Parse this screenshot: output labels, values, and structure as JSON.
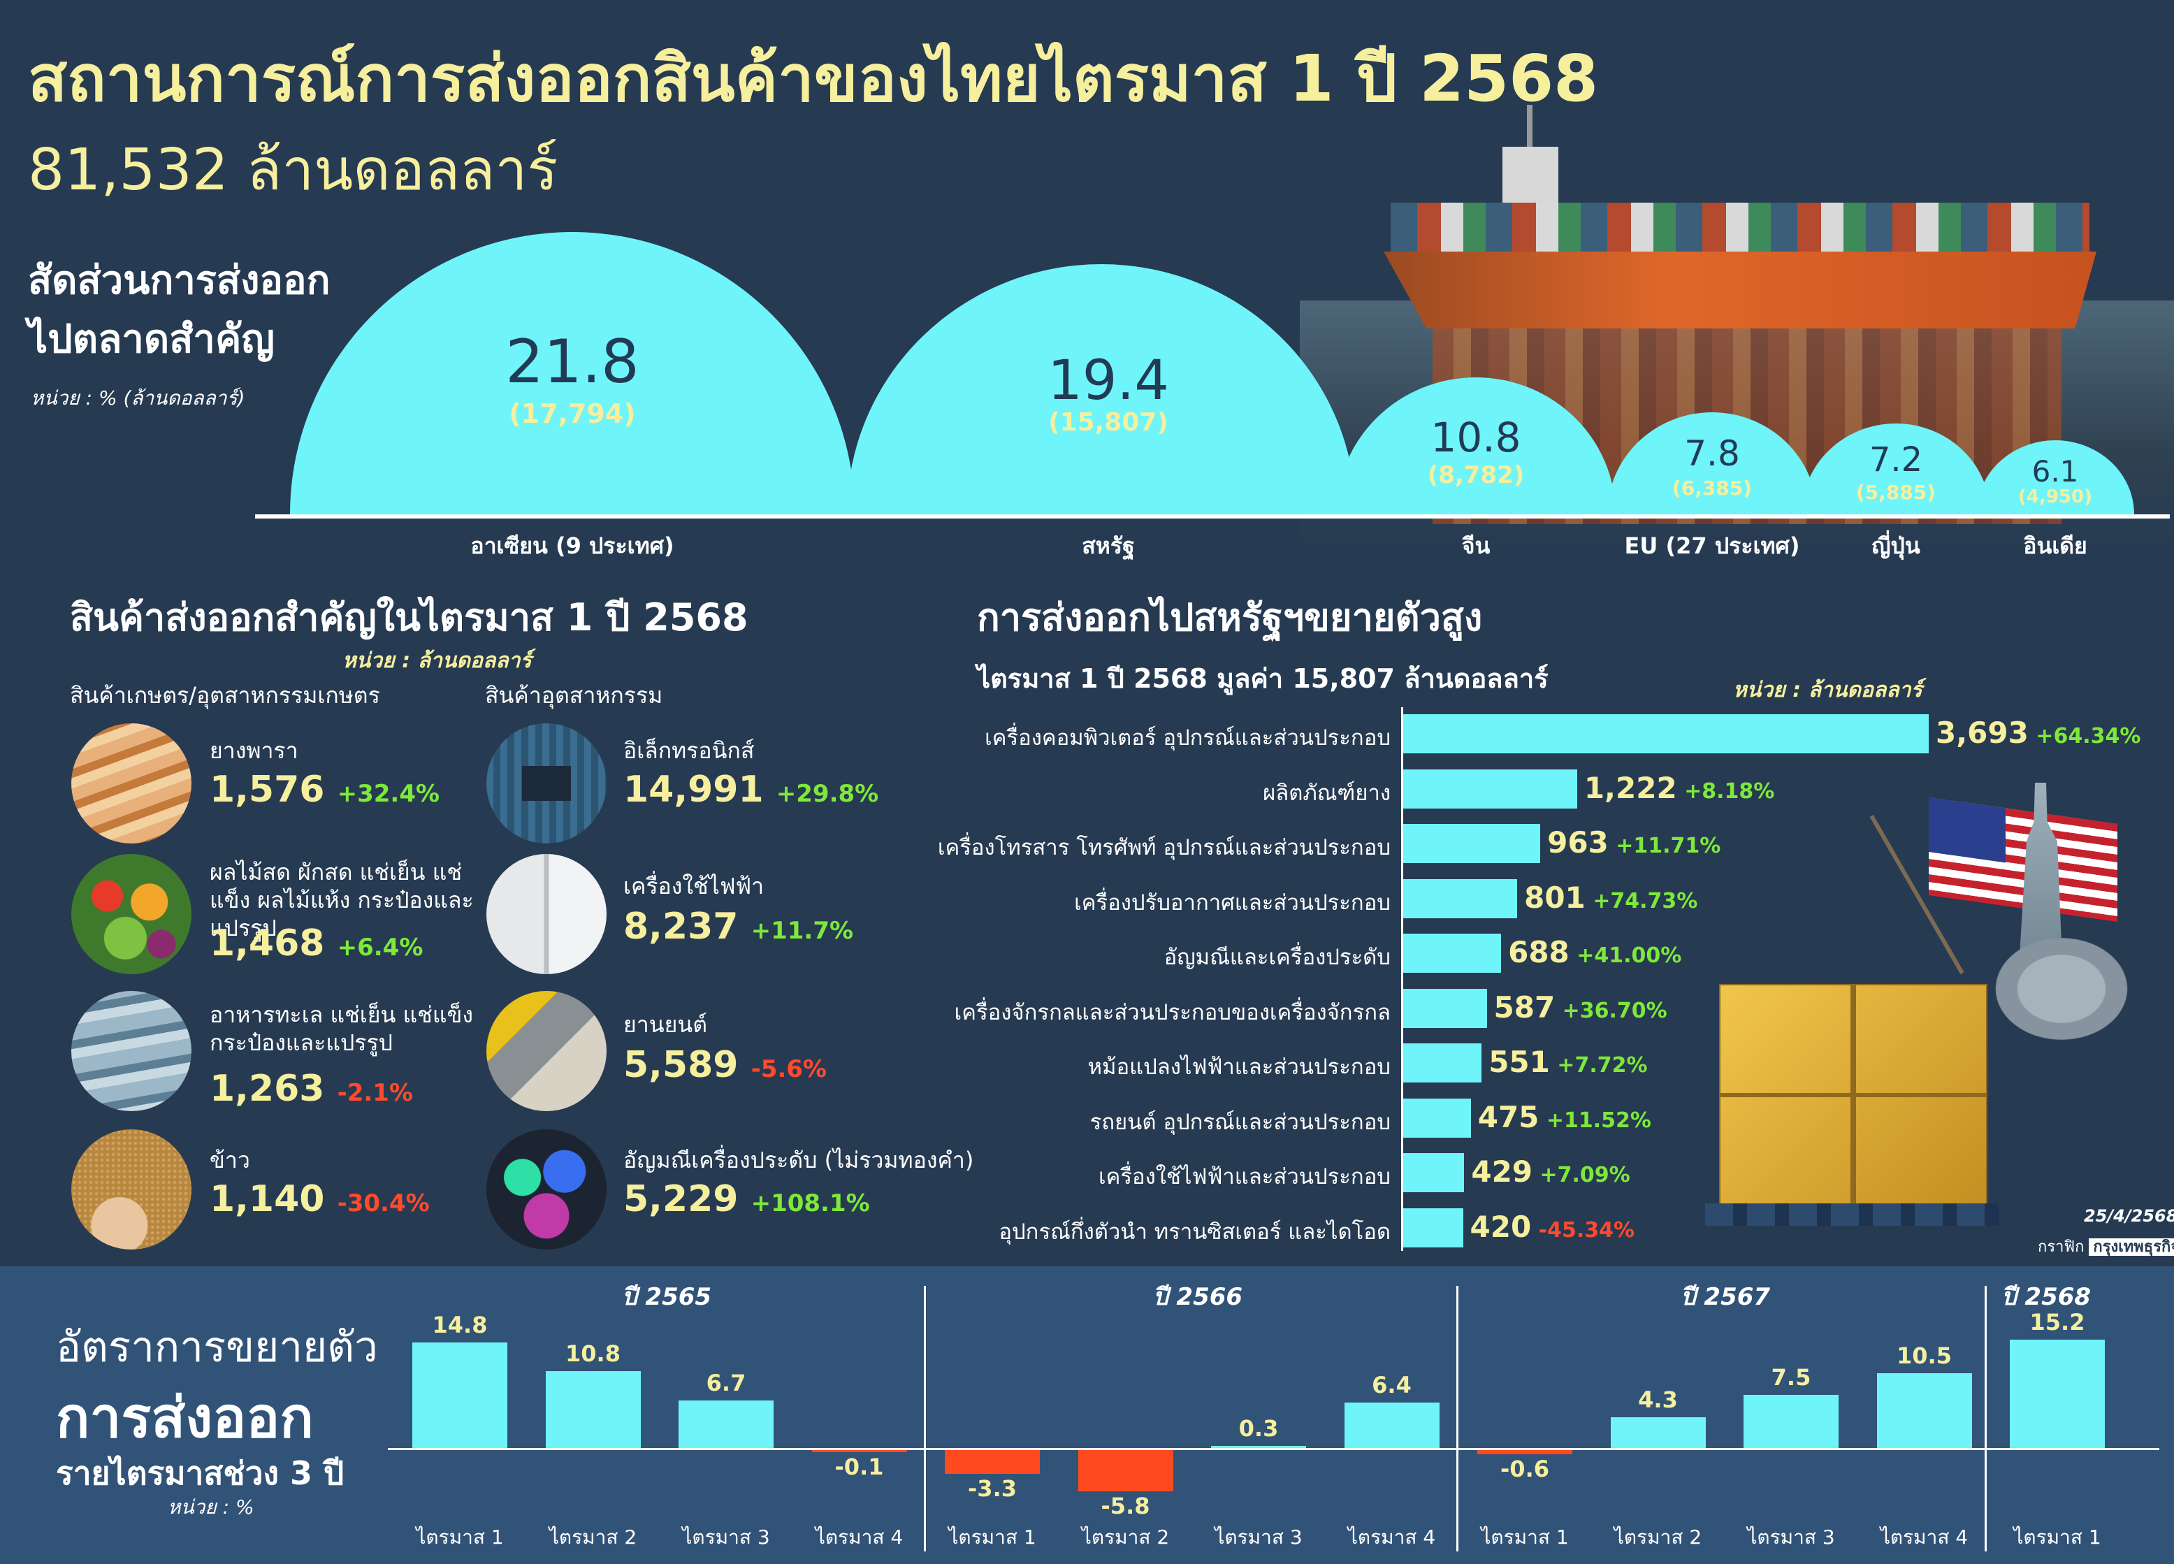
{
  "title": "สถานการณ์การส่งออกสินค้าของไทยไตรมาส 1 ปี 2568",
  "subtitle": "81,532 ล้านดอลลาร์",
  "market_share": {
    "heading_line1": "สัดส่วนการส่งออก",
    "heading_line2": "ไปตลาดสำคัญ",
    "unit": "หน่วย : % (ล้านดอลลาร์)",
    "items": [
      {
        "label": "อาเซียน (9 ประเทศ)",
        "pct": "21.8",
        "value": "(17,794)"
      },
      {
        "label": "สหรัฐ",
        "pct": "19.4",
        "value": "(15,807)"
      },
      {
        "label": "จีน",
        "pct": "10.8",
        "value": "(8,782)"
      },
      {
        "label": "EU (27 ประเทศ)",
        "pct": "7.8",
        "value": "(6,385)"
      },
      {
        "label": "ญี่ปุ่น",
        "pct": "7.2",
        "value": "(5,885)"
      },
      {
        "label": "อินเดีย",
        "pct": "6.1",
        "value": "(4,950)"
      }
    ]
  },
  "products": {
    "heading": "สินค้าส่งออกสำคัญในไตรมาส 1 ปี 2568",
    "unit": "หน่วย : ล้านดอลลาร์",
    "agri_title": "สินค้าเกษตร/อุตสาหกรรมเกษตร",
    "ind_title": "สินค้าอุตสาหกรรม",
    "agri": [
      {
        "name": "ยางพารา",
        "value": "1,576",
        "change": "+32.4%"
      },
      {
        "name": "ผลไม้สด ผักสด แช่เย็น แช่แข็ง ผลไม้แห้ง กระป๋องและแปรรูป",
        "value": "1,468",
        "change": "+6.4%"
      },
      {
        "name": "อาหารทะเล แช่เย็น แช่แข็ง กระป๋องและแปรรูป",
        "value": "1,263",
        "change": "-2.1%"
      },
      {
        "name": "ข้าว",
        "value": "1,140",
        "change": "-30.4%"
      }
    ],
    "industrial": [
      {
        "name": "อิเล็กทรอนิกส์",
        "value": "14,991",
        "change": "+29.8%"
      },
      {
        "name": "เครื่องใช้ไฟฟ้า",
        "value": "8,237",
        "change": "+11.7%"
      },
      {
        "name": "ยานยนต์",
        "value": "5,589",
        "change": "-5.6%"
      },
      {
        "name": "อัญมณีเครื่องประดับ (ไม่รวมทองคำ)",
        "value": "5,229",
        "change": "+108.1%"
      }
    ]
  },
  "us_exports": {
    "heading": "การส่งออกไปสหรัฐฯขยายตัวสูง",
    "subheading": "ไตรมาส 1 ปี 2568 มูลค่า 15,807 ล้านดอลลาร์",
    "unit": "หน่วย : ล้านดอลลาร์",
    "date": "25/4/2568",
    "credit_prefix": "กราฟิก",
    "credit_name": "กรุงเทพธุรกิจ"
  },
  "growth": {
    "title1": "อัตราการขยายตัว",
    "title2": "การส่งออก",
    "title3": "รายไตรมาสช่วง 3 ปี",
    "unit": "หน่วย : %",
    "years": [
      "ปี 2565",
      "ปี 2566",
      "ปี 2567",
      "ปี 2568"
    ]
  },
  "chart_data": [
    {
      "type": "bar",
      "orientation": "horizontal",
      "title": "การส่งออกไปสหรัฐฯขยายตัวสูง",
      "categories": [
        "เครื่องคอมพิวเตอร์ อุปกรณ์และส่วนประกอบ",
        "ผลิตภัณฑ์ยาง",
        "เครื่องโทรสาร โทรศัพท์ อุปกรณ์และส่วนประกอบ",
        "เครื่องปรับอากาศและส่วนประกอบ",
        "อัญมณีและเครื่องประดับ",
        "เครื่องจักรกลและส่วนประกอบของเครื่องจักรกล",
        "หม้อแปลงไฟฟ้าและส่วนประกอบ",
        "รถยนต์ อุปกรณ์และส่วนประกอบ",
        "เครื่องใช้ไฟฟ้าและส่วนประกอบ",
        "อุปกรณ์กึ่งตัวนำ ทรานซิสเตอร์ และไดโอด"
      ],
      "values": [
        3693,
        1222,
        963,
        801,
        688,
        587,
        551,
        475,
        429,
        420
      ],
      "value_labels": [
        "3,693",
        "1,222",
        "963",
        "801",
        "688",
        "587",
        "551",
        "475",
        "429",
        "420"
      ],
      "changes": [
        "+64.34%",
        "+8.18%",
        "+11.71%",
        "+74.73%",
        "+41.00%",
        "+36.70%",
        "+7.72%",
        "+11.52%",
        "+7.09%",
        "-45.34%"
      ]
    },
    {
      "type": "bar",
      "title": "อัตราการขยายตัวการส่งออกรายไตรมาสช่วง 3 ปี",
      "categories": [
        "ไตรมาส 1",
        "ไตรมาส 2",
        "ไตรมาส 3",
        "ไตรมาส 4",
        "ไตรมาส 1",
        "ไตรมาส 2",
        "ไตรมาส 3",
        "ไตรมาส 4",
        "ไตรมาส 1",
        "ไตรมาส 2",
        "ไตรมาส 3",
        "ไตรมาส 4",
        "ไตรมาส 1"
      ],
      "groups": [
        "ปี 2565",
        "ปี 2565",
        "ปี 2565",
        "ปี 2565",
        "ปี 2566",
        "ปี 2566",
        "ปี 2566",
        "ปี 2566",
        "ปี 2567",
        "ปี 2567",
        "ปี 2567",
        "ปี 2567",
        "ปี 2568"
      ],
      "values": [
        14.8,
        10.8,
        6.7,
        -0.1,
        -3.3,
        -5.8,
        0.3,
        6.4,
        -0.6,
        4.3,
        7.5,
        10.5,
        15.2
      ],
      "value_labels": [
        "14.8",
        "10.8",
        "6.7",
        "-0.1",
        "-3.3",
        "-5.8",
        "0.3",
        "6.4",
        "-0.6",
        "4.3",
        "7.5",
        "10.5",
        "15.2"
      ],
      "ylabel": "หน่วย : %",
      "colors": {
        "positive": "#6ff4fa",
        "negative": "#ff4a1f"
      }
    }
  ],
  "colors": {
    "background": "#263a52",
    "accent": "#6ff4fa",
    "highlight": "#f6ef9e",
    "positive": "#7ee83b",
    "negative": "#ff4a2e"
  }
}
